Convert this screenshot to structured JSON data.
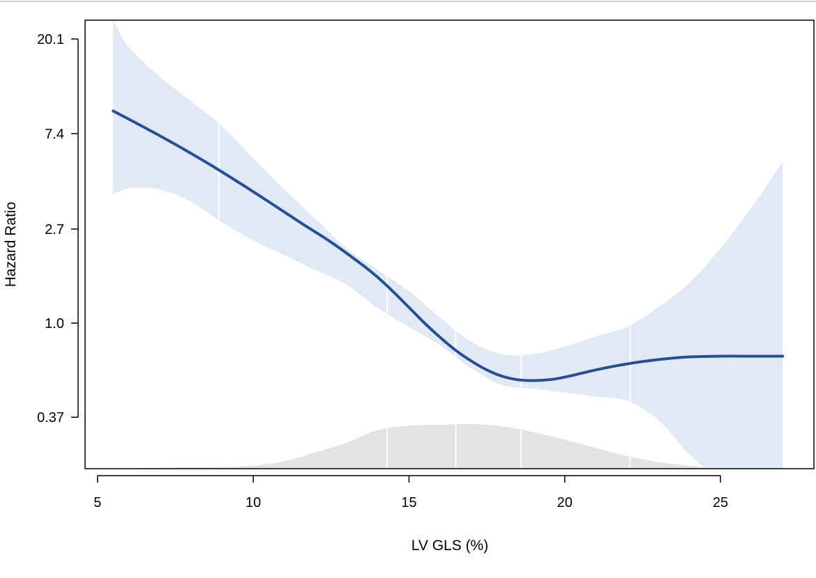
{
  "chart_data": {
    "type": "line",
    "title": "",
    "xlabel": "LV GLS (%)",
    "ylabel": "Hazard Ratio",
    "y_scale": "log",
    "xlim": [
      4.6,
      28.0
    ],
    "ylim": [
      0.215,
      24.5
    ],
    "x_ticks": [
      5,
      10,
      15,
      20,
      25
    ],
    "x_tick_labels": [
      "5",
      "10",
      "15",
      "20",
      "25"
    ],
    "y_ticks": [
      0.37,
      1.0,
      2.7,
      7.4,
      20.1
    ],
    "y_tick_labels": [
      "0.37",
      "1.0",
      "2.7",
      "7.4",
      "20.1"
    ],
    "knots": [
      8.9,
      14.3,
      16.5,
      18.6,
      22.1
    ],
    "colors": {
      "line": "#254f99",
      "band": "#e1e9f5",
      "density": "#e3e3e3",
      "knot": "#ffffff"
    },
    "series": [
      {
        "type": "line",
        "x": [
          5.5,
          6.5,
          7.5,
          8.5,
          9.5,
          10.5,
          11.5,
          12.5,
          13.5,
          14.0,
          14.5,
          15.0,
          15.5,
          16.0,
          16.5,
          17.0,
          17.5,
          18.0,
          18.5,
          19.0,
          19.5,
          20.0,
          21.0,
          22.0,
          23.0,
          24.0,
          25.0,
          26.0,
          27.0
        ],
        "y": [
          9.4,
          7.9,
          6.6,
          5.45,
          4.45,
          3.6,
          2.9,
          2.35,
          1.85,
          1.62,
          1.39,
          1.18,
          1.0,
          0.86,
          0.75,
          0.67,
          0.61,
          0.57,
          0.55,
          0.545,
          0.55,
          0.565,
          0.61,
          0.65,
          0.68,
          0.7,
          0.705,
          0.705,
          0.705
        ]
      },
      {
        "type": "band",
        "x": [
          5.5,
          6.0,
          7.0,
          8.0,
          9.0,
          10.0,
          11.0,
          12.0,
          13.0,
          14.0,
          15.0,
          16.0,
          17.0,
          18.0,
          19.0,
          20.0,
          21.0,
          22.0,
          23.0,
          24.0,
          25.0,
          26.0,
          27.0
        ],
        "lower": [
          3.9,
          4.15,
          4.1,
          3.6,
          2.9,
          2.4,
          2.05,
          1.75,
          1.5,
          1.17,
          0.96,
          0.79,
          0.62,
          0.52,
          0.5,
          0.48,
          0.46,
          0.44,
          0.36,
          0.25,
          0.19,
          0.15,
          0.12
        ],
        "upper": [
          24.5,
          18.5,
          13.5,
          10.4,
          8.0,
          5.7,
          4.1,
          3.0,
          2.2,
          1.75,
          1.4,
          1.06,
          0.82,
          0.72,
          0.72,
          0.78,
          0.87,
          0.96,
          1.18,
          1.53,
          2.2,
          3.4,
          5.5
        ]
      },
      {
        "type": "area",
        "x": [
          5.5,
          7.0,
          8.0,
          9.0,
          10.0,
          11.0,
          12.0,
          13.0,
          14.0,
          15.0,
          16.0,
          17.0,
          18.0,
          19.0,
          20.0,
          21.0,
          22.0,
          23.0,
          24.0,
          25.0,
          26.0,
          27.0
        ],
        "density": [
          0.0,
          0.01,
          0.02,
          0.02,
          0.04,
          0.1,
          0.22,
          0.35,
          0.52,
          0.58,
          0.59,
          0.6,
          0.57,
          0.49,
          0.39,
          0.28,
          0.17,
          0.09,
          0.04,
          0.0,
          0.0,
          0.0
        ]
      }
    ]
  }
}
